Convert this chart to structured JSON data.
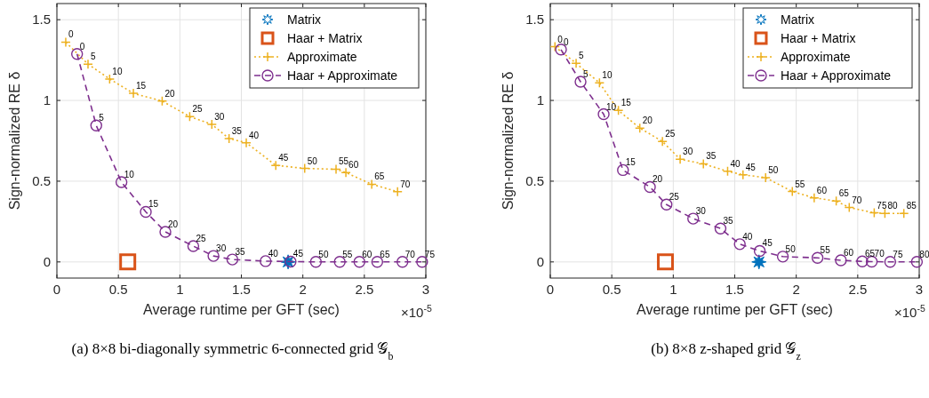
{
  "chart_data": [
    {
      "type": "line",
      "title": "(a) 8×8 bi-diagonally symmetric 6-connected grid 𝒢$_{b}$",
      "xlabel": "Average runtime per GFT (sec)",
      "ylabel": "Sign-normalized RE δ",
      "xlim": [
        0,
        3
      ],
      "ylim": [
        -0.1,
        1.6
      ],
      "xticks": [
        0,
        0.5,
        1,
        1.5,
        2,
        2.5,
        3
      ],
      "yticks": [
        0,
        0.5,
        1,
        1.5
      ],
      "grid": true,
      "legend": "top right",
      "annotations": [
        "×10$^{-5}$",
        {
          "text": "0",
          "x": 0.072,
          "y": 1.361
        },
        {
          "text": "5",
          "x": 0.253,
          "y": 1.225
        },
        {
          "text": "10",
          "x": 0.429,
          "y": 1.133
        },
        {
          "text": "15",
          "x": 0.622,
          "y": 1.044
        },
        {
          "text": "20",
          "x": 0.856,
          "y": 0.996
        },
        {
          "text": "25",
          "x": 1.08,
          "y": 0.9
        },
        {
          "text": "30",
          "x": 1.26,
          "y": 0.852
        },
        {
          "text": "35",
          "x": 1.4,
          "y": 0.764
        },
        {
          "text": "40",
          "x": 1.54,
          "y": 0.738
        },
        {
          "text": "45",
          "x": 1.78,
          "y": 0.598
        },
        {
          "text": "50",
          "x": 2.015,
          "y": 0.579
        },
        {
          "text": "55",
          "x": 2.27,
          "y": 0.574
        },
        {
          "text": "60",
          "x": 2.35,
          "y": 0.553
        },
        {
          "text": "65",
          "x": 2.56,
          "y": 0.481
        },
        {
          "text": "70",
          "x": 2.77,
          "y": 0.435
        },
        {
          "text": "0",
          "x": 0.164,
          "y": 1.288
        },
        {
          "text": "5",
          "x": 0.32,
          "y": 0.845
        },
        {
          "text": "10",
          "x": 0.525,
          "y": 0.494
        },
        {
          "text": "15",
          "x": 0.723,
          "y": 0.31
        },
        {
          "text": "20",
          "x": 0.882,
          "y": 0.186
        },
        {
          "text": "25",
          "x": 1.109,
          "y": 0.098
        },
        {
          "text": "30",
          "x": 1.273,
          "y": 0.037
        },
        {
          "text": "35",
          "x": 1.427,
          "y": 0.015
        },
        {
          "text": "40",
          "x": 1.697,
          "y": 0.005
        },
        {
          "text": "45",
          "x": 1.9,
          "y": 0.002
        },
        {
          "text": "50",
          "x": 2.106,
          "y": 0
        },
        {
          "text": "55",
          "x": 2.3,
          "y": 0
        },
        {
          "text": "60",
          "x": 2.46,
          "y": 0
        },
        {
          "text": "65",
          "x": 2.605,
          "y": 0
        },
        {
          "text": "70",
          "x": 2.81,
          "y": 0
        },
        {
          "text": "75",
          "x": 2.97,
          "y": 0
        }
      ],
      "series": [
        {
          "name": "Matrix",
          "type": "scatter",
          "color": "#0072bd",
          "marker": "star",
          "x": [
            1.88
          ],
          "values": [
            0
          ]
        },
        {
          "name": "Haar + Matrix",
          "type": "scatter",
          "color": "#d95319",
          "marker": "square",
          "x": [
            0.576
          ],
          "values": [
            0
          ]
        },
        {
          "name": "Approximate",
          "type": "line",
          "color": "#edb120",
          "marker": "cross",
          "line_style": "dotted",
          "x": [
            0.072,
            0.253,
            0.429,
            0.622,
            0.856,
            1.08,
            1.26,
            1.4,
            1.54,
            1.78,
            2.015,
            2.27,
            2.35,
            2.56,
            2.77
          ],
          "values": [
            1.361,
            1.225,
            1.133,
            1.044,
            0.996,
            0.9,
            0.852,
            0.764,
            0.738,
            0.598,
            0.579,
            0.574,
            0.553,
            0.481,
            0.435
          ]
        },
        {
          "name": "Haar + Approximate",
          "type": "line",
          "color": "#7e2f8e",
          "marker": "circle",
          "line_style": "dashed",
          "x": [
            0.164,
            0.32,
            0.525,
            0.723,
            0.882,
            1.109,
            1.273,
            1.427,
            1.697,
            1.9,
            2.106,
            2.3,
            2.46,
            2.605,
            2.81,
            2.97
          ],
          "values": [
            1.288,
            0.845,
            0.494,
            0.31,
            0.186,
            0.098,
            0.037,
            0.015,
            0.005,
            0.002,
            0,
            0,
            0,
            0,
            0,
            0
          ]
        }
      ]
    },
    {
      "type": "line",
      "title": "(b) 8×8 z-shaped grid 𝒢$_{z}$",
      "xlabel": "Average runtime per GFT (sec)",
      "ylabel": "Sign-normalized RE δ",
      "xlim": [
        0,
        3
      ],
      "ylim": [
        -0.1,
        1.6
      ],
      "xticks": [
        0,
        0.5,
        1,
        1.5,
        2,
        2.5,
        3
      ],
      "yticks": [
        0,
        0.5,
        1,
        1.5
      ],
      "grid": true,
      "legend": "top right",
      "annotations": [
        "×10$^{-5}$",
        {
          "text": "0",
          "x": 0.038,
          "y": 1.333
        },
        {
          "text": "5",
          "x": 0.21,
          "y": 1.23
        },
        {
          "text": "10",
          "x": 0.4,
          "y": 1.109
        },
        {
          "text": "15",
          "x": 0.554,
          "y": 0.938
        },
        {
          "text": "20",
          "x": 0.728,
          "y": 0.829
        },
        {
          "text": "25",
          "x": 0.912,
          "y": 0.746
        },
        {
          "text": "30",
          "x": 1.056,
          "y": 0.636
        },
        {
          "text": "35",
          "x": 1.245,
          "y": 0.607
        },
        {
          "text": "40",
          "x": 1.442,
          "y": 0.561
        },
        {
          "text": "45",
          "x": 1.567,
          "y": 0.54
        },
        {
          "text": "50",
          "x": 1.751,
          "y": 0.522
        },
        {
          "text": "55",
          "x": 1.968,
          "y": 0.436
        },
        {
          "text": "60",
          "x": 2.146,
          "y": 0.397
        },
        {
          "text": "65",
          "x": 2.325,
          "y": 0.377
        },
        {
          "text": "70",
          "x": 2.431,
          "y": 0.337
        },
        {
          "text": "75",
          "x": 2.634,
          "y": 0.304
        },
        {
          "text": "80",
          "x": 2.721,
          "y": 0.3
        },
        {
          "text": "85",
          "x": 2.875,
          "y": 0.3
        },
        {
          "text": "0",
          "x": 0.087,
          "y": 1.315
        },
        {
          "text": "5",
          "x": 0.246,
          "y": 1.116
        },
        {
          "text": "10",
          "x": 0.434,
          "y": 0.915
        },
        {
          "text": "15",
          "x": 0.591,
          "y": 0.569
        },
        {
          "text": "20",
          "x": 0.81,
          "y": 0.464
        },
        {
          "text": "25",
          "x": 0.945,
          "y": 0.355
        },
        {
          "text": "30",
          "x": 1.162,
          "y": 0.268
        },
        {
          "text": "35",
          "x": 1.384,
          "y": 0.207
        },
        {
          "text": "40",
          "x": 1.541,
          "y": 0.11
        },
        {
          "text": "45",
          "x": 1.703,
          "y": 0.068
        },
        {
          "text": "50",
          "x": 1.891,
          "y": 0.033
        },
        {
          "text": "55",
          "x": 2.173,
          "y": 0.025
        },
        {
          "text": "60",
          "x": 2.363,
          "y": 0.01
        },
        {
          "text": "65",
          "x": 2.537,
          "y": 0.003
        },
        {
          "text": "70",
          "x": 2.614,
          "y": 0.002
        },
        {
          "text": "75",
          "x": 2.764,
          "y": 0
        },
        {
          "text": "80",
          "x": 2.981,
          "y": 0
        }
      ],
      "series": [
        {
          "name": "Matrix",
          "type": "scatter",
          "color": "#0072bd",
          "marker": "star",
          "x": [
            1.697
          ],
          "values": [
            0
          ]
        },
        {
          "name": "Haar + Matrix",
          "type": "scatter",
          "color": "#d95319",
          "marker": "square",
          "x": [
            0.936
          ],
          "values": [
            0
          ]
        },
        {
          "name": "Approximate",
          "type": "line",
          "color": "#edb120",
          "marker": "cross",
          "line_style": "dotted",
          "x": [
            0.038,
            0.21,
            0.4,
            0.554,
            0.728,
            0.912,
            1.056,
            1.245,
            1.442,
            1.567,
            1.751,
            1.968,
            2.146,
            2.325,
            2.431,
            2.634,
            2.721,
            2.875
          ],
          "values": [
            1.333,
            1.23,
            1.109,
            0.938,
            0.829,
            0.746,
            0.636,
            0.607,
            0.561,
            0.54,
            0.522,
            0.436,
            0.397,
            0.377,
            0.337,
            0.304,
            0.3,
            0.3
          ]
        },
        {
          "name": "Haar + Approximate",
          "type": "line",
          "color": "#7e2f8e",
          "marker": "circle",
          "line_style": "dashed",
          "x": [
            0.087,
            0.246,
            0.434,
            0.591,
            0.81,
            0.945,
            1.162,
            1.384,
            1.541,
            1.703,
            1.891,
            2.173,
            2.363,
            2.537,
            2.614,
            2.764,
            2.981
          ],
          "values": [
            1.315,
            1.116,
            0.915,
            0.569,
            0.464,
            0.355,
            0.268,
            0.207,
            0.11,
            0.068,
            0.033,
            0.025,
            0.01,
            0.003,
            0.002,
            0,
            0
          ]
        }
      ]
    }
  ]
}
